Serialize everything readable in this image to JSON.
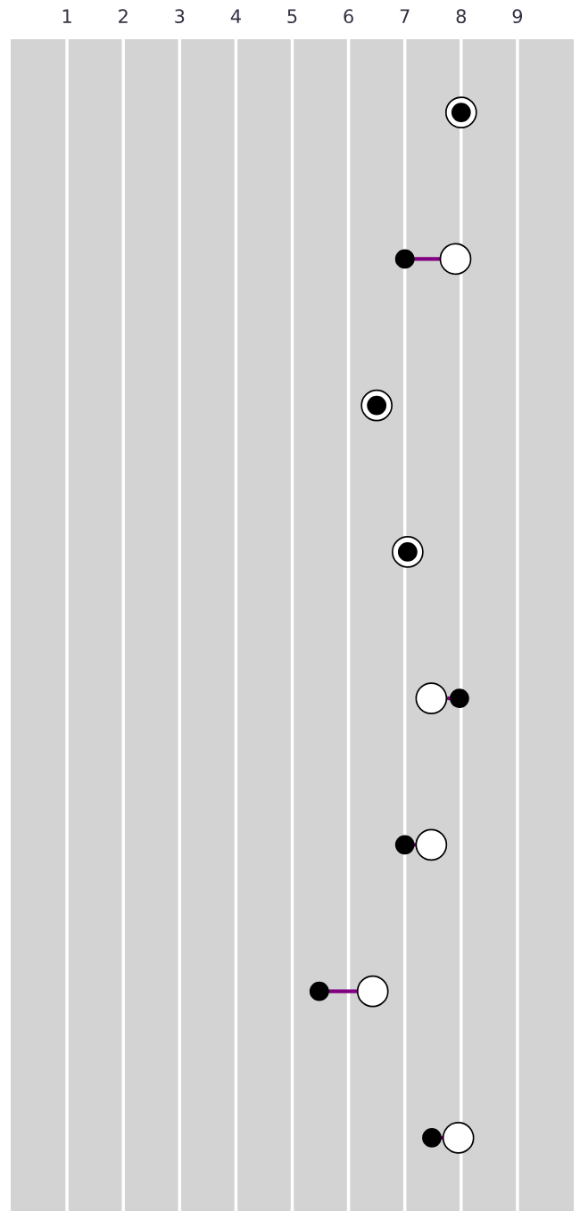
{
  "chart_data": {
    "type": "scatter",
    "orientation": "horizontal",
    "categories": [
      null,
      null,
      null,
      null,
      null,
      null,
      null,
      null
    ],
    "series": [
      {
        "type": "scatter",
        "color": "#ffffff",
        "values": [
          8.0,
          7.9,
          6.5,
          7.05,
          7.47,
          7.47,
          6.43,
          7.95
        ]
      },
      {
        "type": "scatter",
        "color": "#000000",
        "values": [
          8.0,
          7.0,
          6.5,
          7.05,
          7.97,
          7.0,
          5.48,
          7.48
        ]
      }
    ],
    "xlim": [
      0,
      10
    ],
    "xticks": [
      1,
      2,
      3,
      4,
      5,
      6,
      7,
      8,
      9
    ],
    "grid": "x",
    "tick_labels": "x",
    "marker": "circle"
  }
}
